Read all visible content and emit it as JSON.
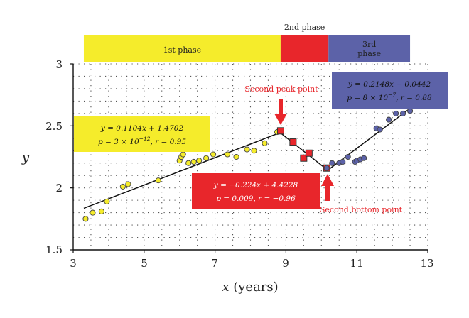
{
  "chart_data": {
    "type": "scatter",
    "xlabel_var": "x",
    "xlabel_unit": "(years)",
    "ylabel": "y",
    "xlim": [
      3,
      13
    ],
    "ylim": [
      1.5,
      3
    ],
    "xticks": [
      "3",
      "5",
      "7",
      "9",
      "11",
      "13"
    ],
    "yticks": [
      "1.5",
      "2",
      "2.5",
      "3"
    ],
    "grid": "dotted",
    "phases": [
      {
        "label": "1st phase",
        "x_start": 3.3,
        "x_end": 8.85,
        "color": "#f5ec2b"
      },
      {
        "label": "2nd phase",
        "x_start": 8.85,
        "x_end": 10.2,
        "color": "#e8262b"
      },
      {
        "label": "3rd phase",
        "x_start": 10.2,
        "x_end": 12.5,
        "color": "#5c62a8"
      }
    ],
    "series": [
      {
        "color": "#f5ec2b",
        "x": [
          3.35,
          3.55,
          3.8,
          3.95,
          4.4,
          4.55,
          5.4,
          6.0,
          6.05,
          6.1,
          6.25,
          6.4,
          6.55,
          6.75,
          6.95,
          7.35,
          7.6,
          7.9,
          8.1,
          8.4,
          8.75,
          8.85
        ],
        "y": [
          1.75,
          1.8,
          1.81,
          1.89,
          2.01,
          2.03,
          2.06,
          2.22,
          2.25,
          2.27,
          2.2,
          2.21,
          2.22,
          2.24,
          2.27,
          2.27,
          2.25,
          2.31,
          2.3,
          2.36,
          2.45,
          2.46
        ]
      },
      {
        "color": "#e8262b",
        "x": [
          8.85,
          9.2,
          9.5,
          9.65,
          10.15
        ],
        "y": [
          2.46,
          2.37,
          2.24,
          2.28,
          2.16
        ]
      },
      {
        "color": "#5c62a8",
        "x": [
          10.15,
          10.3,
          10.5,
          10.6,
          10.75,
          10.95,
          11.0,
          11.1,
          11.2,
          11.55,
          11.65,
          11.9,
          12.1,
          12.3,
          12.5
        ],
        "y": [
          2.16,
          2.2,
          2.2,
          2.21,
          2.25,
          2.21,
          2.22,
          2.23,
          2.24,
          2.48,
          2.47,
          2.55,
          2.6,
          2.6,
          2.62
        ]
      }
    ],
    "fit_lines": [
      {
        "x": [
          3.3,
          8.85
        ],
        "y": [
          1.835,
          2.447
        ]
      },
      {
        "x": [
          8.85,
          10.2
        ],
        "y": [
          2.442,
          2.138
        ]
      },
      {
        "x": [
          10.2,
          12.5
        ],
        "y": [
          2.147,
          2.641
        ]
      }
    ],
    "annotations": [
      {
        "color": "#f5ec2b",
        "text_color": "#111",
        "line1": "y = 0.1104x + 1.4702",
        "line2": "p = 3 × 10",
        "line2_exp": "−12",
        "line2_tail": ", r = 0.95"
      },
      {
        "color": "#e8262b",
        "text_color": "#fff",
        "line1": "y = −0.224x + 4.4228",
        "line2": "p = 0.009, r = −0.96",
        "line2_exp": "",
        "line2_tail": ""
      },
      {
        "color": "#5c62a8",
        "text_color": "#111",
        "line1": "y = 0.2148x − 0.0442",
        "line2": "p = 8 × 10",
        "line2_exp": "−7",
        "line2_tail": ", r = 0.88"
      }
    ],
    "labels": {
      "peak": "Second peak point",
      "bottom": "Second bottom point"
    }
  }
}
